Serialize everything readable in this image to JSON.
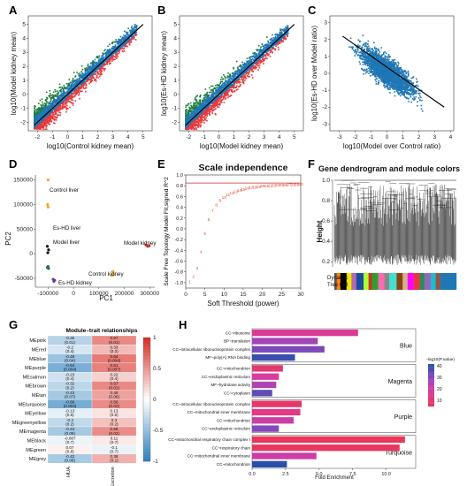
{
  "panels": {
    "A": {
      "label": "A",
      "xlabel": "log10(Control kidney mean)",
      "ylabel": "log10(Model kidney mean)",
      "xticks": [
        "-2",
        "-1",
        "0",
        "1",
        "2",
        "3",
        "4",
        "5"
      ],
      "yticks": [
        "-2",
        "-1",
        "0",
        "1",
        "2",
        "3",
        "4",
        "5"
      ]
    },
    "B": {
      "label": "B",
      "xlabel": "log10(Model kidney mean)",
      "ylabel": "log10(Es-HD kidney mean)",
      "xticks": [
        "-2",
        "-1",
        "0",
        "1",
        "2",
        "3",
        "4",
        "5"
      ],
      "yticks": [
        "-2",
        "-1",
        "0",
        "1",
        "2",
        "3",
        "4",
        "5"
      ]
    },
    "C": {
      "label": "C",
      "xlabel": "log10(Model over Control ratio)",
      "ylabel": "log10(Es-HD over Model ratio)",
      "xticks": [
        "-3",
        "-2",
        "-1",
        "0",
        "1",
        "2",
        "3",
        "4"
      ],
      "yticks": [
        "-3",
        "-2",
        "-1",
        "0",
        "1",
        "2",
        "3"
      ]
    },
    "D": {
      "label": "D",
      "xlabel": "PC1",
      "ylabel": "PC2",
      "xticks": [
        "-100000",
        "0",
        "100000",
        "200000",
        "300000"
      ],
      "yticks": [
        "150000",
        "100000",
        "50000",
        "0",
        "-50000"
      ],
      "group_labels": [
        "Control liver",
        "Es-HD liver",
        "Model liver",
        "Es-HD kidney",
        "Model kidney",
        "Control kidney"
      ]
    },
    "E": {
      "label": "E",
      "title": "Scale independence",
      "xlabel": "Soft Threshold (power)",
      "ylabel": "Scale Free Topology Model Fit,signed R^2",
      "xticks": [
        "0",
        "5",
        "10",
        "15",
        "20",
        "25",
        "30"
      ],
      "yticks": [
        "-1.0",
        "-0.8",
        "-0.6",
        "-0.4",
        "-0.2",
        "0.0",
        "0.2",
        "0.4",
        "0.6",
        "0.8",
        "1.0"
      ]
    },
    "F": {
      "label": "F",
      "title": "Gene dendrogram and module colors",
      "ylabel": "Height",
      "yticks": [
        "0.2",
        "0.4",
        "0.6",
        "0.8",
        "1.0"
      ],
      "track_label_1": "Dynamic",
      "track_label_2": "Tree Cut"
    },
    "G": {
      "label": "G",
      "title": "Module–trait relationships",
      "modules": [
        "MEpink",
        "MEred",
        "MEblue",
        "MEpurple",
        "MEsalmon",
        "MEbrown",
        "MEtan",
        "MEturquoise",
        "MEyellow",
        "MEgreenyellow",
        "MEmagenta",
        "MEblack",
        "MEgreen",
        "MEgrey"
      ],
      "traits": [
        "HUA",
        "Excretion"
      ],
      "cells": [
        [
          "-0.35\n(0.01)",
          "0.57\n(0.01)"
        ],
        [
          "-0.2\n(0.4)",
          "0.33\n(0.2)"
        ],
        [
          "-0.48\n(0.04)",
          "0.64\n(0.004)"
        ],
        [
          "-0.64\n(0.004)",
          "0.61\n(0.007)"
        ],
        [
          "-0.23\n(0.4)",
          "0.22\n(0.4)"
        ],
        [
          "-0.32\n(0.2)",
          "0.57\n(0.01)"
        ],
        [
          "-0.43\n(0.07)",
          "0.45\n(0.06)"
        ],
        [
          "-0.66\n(0.003)",
          "0.56\n(0.02)"
        ],
        [
          "-0.13\n(0.6)",
          "0.13\n(0.6)"
        ],
        [
          "-0.3\n(0.2)",
          "0.3\n(0.2)"
        ],
        [
          "-0.43\n(0.08)",
          "0.55\n(0.02)"
        ],
        [
          "-0.087\n(0.7)",
          "0.11\n(0.7)"
        ],
        [
          "0.07\n(0.8)",
          "-0.1\n(0.7)"
        ],
        [
          "-0.42\n(0.08)",
          "0.38\n(0.1)"
        ]
      ],
      "scale": [
        "1",
        "0.5",
        "0",
        "-0.5",
        "-1"
      ]
    },
    "H": {
      "label": "H",
      "xlabel": "Fold Enrichment",
      "xticks": [
        "0.0",
        "2.5",
        "5.0",
        "7.5",
        "10.0"
      ],
      "legend_title": "-log10(P.value)",
      "legend_ticks": [
        "40",
        "30",
        "20",
        "10"
      ],
      "groups": [
        "Blue",
        "Magenta",
        "Purple",
        "Turquoise"
      ],
      "terms": [
        "CC~ribosome",
        "BP~translation",
        "CC~intracellular ribonucleoprotein complex",
        "MF~poly(A) RNA binding",
        "CC~mitochondrion",
        "CC~endoplasmic reticulum",
        "MF~hydrolase activity",
        "CC~cytoplasm",
        "CC~intracellular ribonucleoprotein complex",
        "CC~mitochondrial inner membrane",
        "CC~mitochondrion",
        "CC~endoplasmic reticulum",
        "CC~mitochondrial respiratory chain complex I",
        "CC~respiratory chain",
        "CC~mitochondrial inner membrane",
        "CC~mitochondrion"
      ]
    }
  },
  "chart_data": [
    {
      "type": "scatter",
      "panel": "A",
      "xlabel": "log10(Control kidney mean)",
      "ylabel": "log10(Model kidney mean)",
      "xlim": [
        -2.6,
        5.6
      ],
      "ylim": [
        -2.6,
        5.6
      ],
      "fit_line": [
        [
          -2.2,
          -2.2
        ],
        [
          5,
          5
        ]
      ]
    },
    {
      "type": "scatter",
      "panel": "B",
      "xlabel": "log10(Model kidney mean)",
      "ylabel": "log10(Es-HD kidney mean)",
      "xlim": [
        -2.6,
        5.6
      ],
      "ylim": [
        -2.6,
        5.6
      ],
      "fit_line": [
        [
          -2.2,
          -2.2
        ],
        [
          5,
          5
        ]
      ]
    },
    {
      "type": "scatter",
      "panel": "C",
      "xlabel": "log10(Model over Control ratio)",
      "ylabel": "log10(Es-HD over Model ratio)",
      "xlim": [
        -3.6,
        4.2
      ],
      "ylim": [
        -3.4,
        3.4
      ],
      "fit_line": [
        [
          -2.8,
          2.2
        ],
        [
          3.6,
          -2.0
        ]
      ]
    },
    {
      "type": "scatter",
      "panel": "D",
      "xlabel": "PC1",
      "ylabel": "PC2",
      "series": [
        {
          "name": "Control liver",
          "points": [
            [
              -100000,
              150000
            ],
            [
              -102000,
              100000
            ],
            [
              -100000,
              95000
            ]
          ]
        },
        {
          "name": "Es-HD liver",
          "points": [
            [
              -103000,
              15000
            ],
            [
              -98000,
              8000
            ],
            [
              -101000,
              2000
            ]
          ]
        },
        {
          "name": "Model liver",
          "points": [
            [
              -100000,
              -26000
            ],
            [
              -103000,
              -28000
            ],
            [
              -98000,
              -30000
            ]
          ]
        },
        {
          "name": "Es-HD kidney",
          "points": [
            [
              -80000,
              -52000
            ],
            [
              -77000,
              -56000
            ],
            [
              -74000,
              -54000
            ]
          ]
        },
        {
          "name": "Model kidney",
          "points": [
            [
              285000,
              18000
            ],
            [
              292000,
              15000
            ],
            [
              298000,
              16000
            ]
          ]
        },
        {
          "name": "Control kidney",
          "points": [
            [
              155000,
              -36000
            ],
            [
              158000,
              -42000
            ],
            [
              152000,
              -44000
            ]
          ]
        }
      ]
    },
    {
      "type": "scatter",
      "panel": "E",
      "title": "Scale independence",
      "xlabel": "Soft Threshold (power)",
      "ylabel": "Scale Free Topology Model Fit,signed R^2",
      "xlim": [
        0,
        30
      ],
      "ylim": [
        -1.1,
        1.0
      ],
      "threshold": 0.85,
      "x": [
        1,
        2,
        3,
        4,
        5,
        6,
        7,
        8,
        9,
        10,
        11,
        12,
        13,
        14,
        15,
        16,
        17,
        18,
        19,
        20,
        21,
        22,
        23,
        24,
        25,
        26,
        27,
        28,
        29,
        30
      ],
      "y": [
        -0.98,
        -0.88,
        -0.72,
        -0.42,
        -0.08,
        0.18,
        0.34,
        0.45,
        0.53,
        0.59,
        0.64,
        0.67,
        0.7,
        0.72,
        0.74,
        0.76,
        0.77,
        0.78,
        0.79,
        0.8,
        0.8,
        0.81,
        0.81,
        0.82,
        0.82,
        0.82,
        0.83,
        0.83,
        0.83,
        0.84
      ]
    },
    {
      "type": "heatmap",
      "panel": "G",
      "title": "Module–trait relationships",
      "rows": [
        "MEpink",
        "MEred",
        "MEblue",
        "MEpurple",
        "MEsalmon",
        "MEbrown",
        "MEtan",
        "MEturquoise",
        "MEyellow",
        "MEgreenyellow",
        "MEmagenta",
        "MEblack",
        "MEgreen",
        "MEgrey"
      ],
      "cols": [
        "HUA",
        "Excretion"
      ],
      "values": [
        [
          -0.35,
          0.57
        ],
        [
          -0.2,
          0.33
        ],
        [
          -0.48,
          0.64
        ],
        [
          -0.64,
          0.61
        ],
        [
          -0.23,
          0.22
        ],
        [
          -0.32,
          0.57
        ],
        [
          -0.43,
          0.45
        ],
        [
          -0.66,
          0.56
        ],
        [
          -0.13,
          0.13
        ],
        [
          -0.3,
          0.3
        ],
        [
          -0.43,
          0.55
        ],
        [
          -0.087,
          0.11
        ],
        [
          0.07,
          -0.1
        ],
        [
          -0.42,
          0.38
        ]
      ]
    },
    {
      "type": "bar",
      "panel": "H",
      "xlabel": "Fold Enrichment",
      "orientation": "horizontal",
      "categories": [
        "CC~ribosome",
        "BP~translation",
        "CC~intracellular ribonucleoprotein complex",
        "MF~poly(A) RNA binding",
        "CC~mitochondrion",
        "CC~endoplasmic reticulum",
        "MF~hydrolase activity",
        "CC~cytoplasm",
        "CC~intracellular ribonucleoprotein complex",
        "CC~mitochondrial inner membrane",
        "CC~mitochondrion",
        "CC~endoplasmic reticulum",
        "CC~mitochondrial respiratory chain complex I",
        "CC~respiratory chain",
        "CC~mitochondrial inner membrane",
        "CC~mitochondrion"
      ],
      "values": [
        7.9,
        4.9,
        5.4,
        3.2,
        2.3,
        2.0,
        1.8,
        1.5,
        3.7,
        3.6,
        3.1,
        2.0,
        11.4,
        11.0,
        4.8,
        2.6
      ],
      "neglog10p": [
        18,
        28,
        33,
        40,
        12,
        20,
        26,
        36,
        11,
        15,
        22,
        32,
        8,
        9,
        22,
        42
      ]
    }
  ],
  "colors": {
    "blue": "#1f77b4",
    "red": "#e8373a",
    "green": "#1e7a3c",
    "fitline": "#000000",
    "threshold": "#d62728",
    "epoints": "#e34a33"
  }
}
